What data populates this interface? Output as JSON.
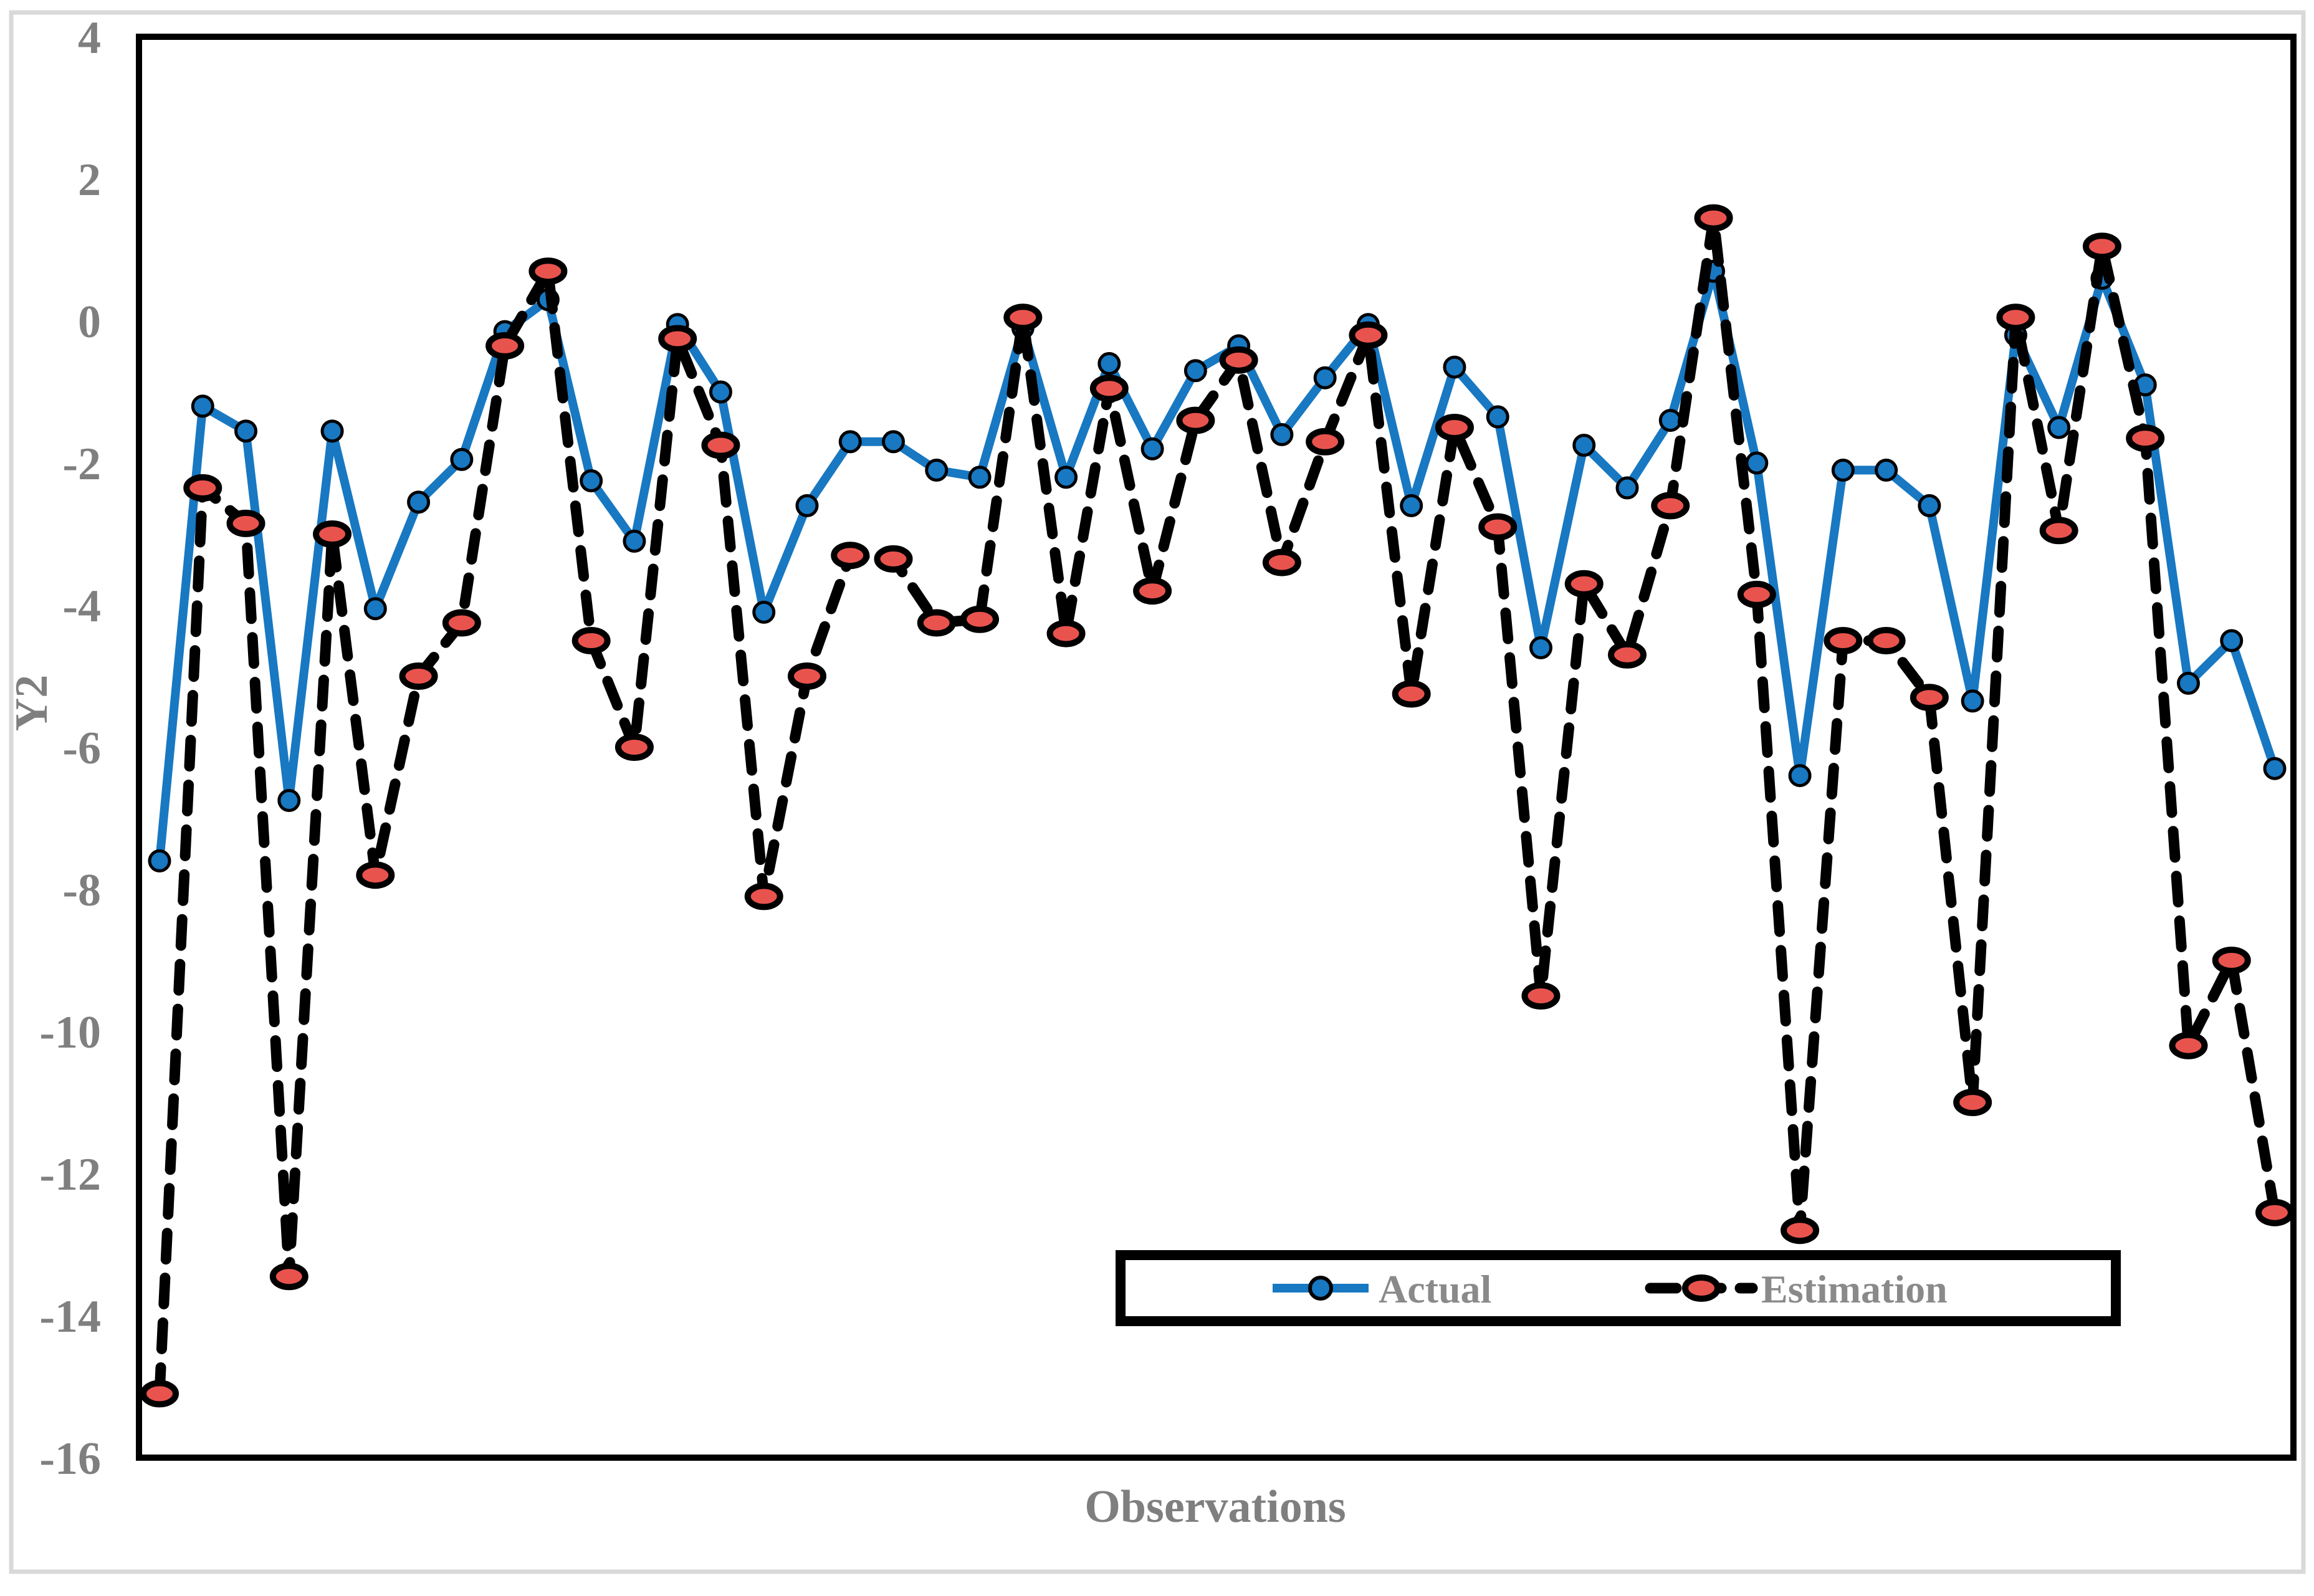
{
  "figure": {
    "background": "#ffffff",
    "border_color": "#d9d9d9",
    "plot_border_color": "#000000",
    "tick_label_color": "#7f7f7f",
    "axis_title_color": "#7f7f7f",
    "legend_text_color": "#8a8a8a"
  },
  "legend": {
    "actual_label": "Actual",
    "estimation_label": "Estimation"
  },
  "chart_data": {
    "type": "line",
    "title": "",
    "xlabel": "Observations",
    "ylabel": "Y2",
    "ylim": [
      -16,
      4
    ],
    "y_ticks": [
      4,
      2,
      0,
      -2,
      -4,
      -6,
      -8,
      -10,
      -12,
      -14,
      -16
    ],
    "x_tick_labels_visible": false,
    "grid": false,
    "legend_position": "inside-bottom-center",
    "n_observations": 50,
    "x": [
      1,
      2,
      3,
      4,
      5,
      6,
      7,
      8,
      9,
      10,
      11,
      12,
      13,
      14,
      15,
      16,
      17,
      18,
      19,
      20,
      21,
      22,
      23,
      24,
      25,
      26,
      27,
      28,
      29,
      30,
      31,
      32,
      33,
      34,
      35,
      36,
      37,
      38,
      39,
      40,
      41,
      42,
      43,
      44,
      45,
      46,
      47,
      48,
      49,
      50
    ],
    "series": [
      {
        "name": "Actual",
        "style": "solid",
        "line_color": "#1878c2",
        "marker": "circle",
        "marker_fill": "#1878c2",
        "marker_edge": "#000000",
        "values": [
          -7.6,
          -1.2,
          -1.55,
          -6.75,
          -1.55,
          -4.05,
          -2.55,
          -1.95,
          -0.15,
          0.3,
          -2.25,
          -3.1,
          -0.05,
          -1.0,
          -4.1,
          -2.6,
          -1.7,
          -1.7,
          -2.1,
          -2.2,
          -0.1,
          -2.2,
          -0.6,
          -1.8,
          -0.7,
          -0.35,
          -1.6,
          -0.8,
          -0.05,
          -2.6,
          -0.65,
          -1.35,
          -4.6,
          -1.75,
          -2.35,
          -1.4,
          0.7,
          -2.0,
          -6.4,
          -2.1,
          -2.1,
          -2.6,
          -5.35,
          -0.2,
          -1.5,
          0.6,
          -0.9,
          -5.1,
          -4.5,
          -6.3
        ]
      },
      {
        "name": "Estimation",
        "style": "dashed",
        "line_color": "#000000",
        "marker": "ellipse",
        "marker_fill": "#e9534e",
        "marker_edge": "#000000",
        "values": [
          -15.1,
          -2.35,
          -2.85,
          -13.45,
          -3.0,
          -7.8,
          -5.0,
          -4.25,
          -0.35,
          0.7,
          -4.5,
          -6.0,
          -0.25,
          -1.75,
          -8.1,
          -5.0,
          -3.3,
          -3.35,
          -4.25,
          -4.2,
          0.05,
          -4.4,
          -0.95,
          -3.8,
          -1.4,
          -0.55,
          -3.4,
          -1.7,
          -0.2,
          -5.25,
          -1.5,
          -2.9,
          -9.5,
          -3.7,
          -4.7,
          -2.6,
          1.45,
          -3.85,
          -12.8,
          -4.5,
          -4.5,
          -5.3,
          -11.0,
          0.05,
          -2.95,
          1.05,
          -1.65,
          -10.2,
          -9.0,
          -12.55
        ]
      }
    ]
  }
}
